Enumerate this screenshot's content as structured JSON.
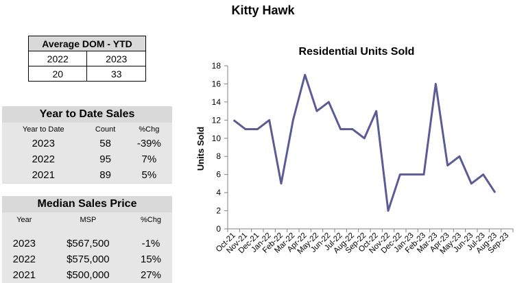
{
  "page_title": "Kitty Hawk",
  "dom_table": {
    "header": "Average DOM - YTD",
    "years": [
      "2022",
      "2023"
    ],
    "values": [
      "20",
      "33"
    ]
  },
  "ytd_sales": {
    "title": "Year to Date Sales",
    "columns": [
      "Year to Date",
      "Count",
      "%Chg"
    ],
    "rows": [
      [
        "2023",
        "58",
        "-39%"
      ],
      [
        "2022",
        "95",
        "7%"
      ],
      [
        "2021",
        "89",
        "5%"
      ]
    ]
  },
  "median_price": {
    "title": "Median Sales Price",
    "columns": [
      "Year",
      "MSP",
      "%Chg"
    ],
    "rows": [
      [
        "2023",
        "$567,500",
        "-1%"
      ],
      [
        "2022",
        "$575,000",
        "15%"
      ],
      [
        "2021",
        "$500,000",
        "27%"
      ]
    ]
  },
  "colors": {
    "line": "#5b5b96",
    "panel": "#d9d9d9",
    "axis": "#808080"
  },
  "chart_data": {
    "type": "line",
    "title": "Residential Units Sold",
    "xlabel": "",
    "ylabel": "Units Sold",
    "ylim": [
      0,
      18
    ],
    "yticks": [
      0,
      2,
      4,
      6,
      8,
      10,
      12,
      14,
      16,
      18
    ],
    "grid": false,
    "categories": [
      "Oct-21",
      "Nov-21",
      "Dec-21",
      "Jan-22",
      "Feb-22",
      "Mar-22",
      "Apr-22",
      "May-22",
      "Jun-22",
      "Jul-22",
      "Aug-22",
      "Sep-22",
      "Oct-22",
      "Nov-22",
      "Dec-22",
      "Jan-23",
      "Feb-23",
      "Mar-23",
      "Apr-23",
      "May-23",
      "Jun-23",
      "Jul-23",
      "Aug-23",
      "Sep-23"
    ],
    "series": [
      {
        "values": [
          12,
          11,
          11,
          12,
          5,
          12,
          17,
          13,
          14,
          11,
          11,
          10,
          13,
          2,
          6,
          6,
          6,
          16,
          7,
          8,
          5,
          6,
          4,
          null
        ]
      }
    ]
  }
}
